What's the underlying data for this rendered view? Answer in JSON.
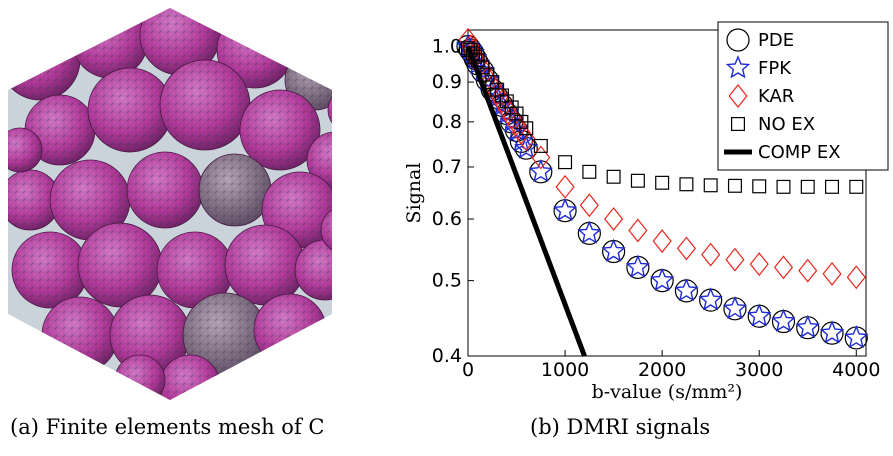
{
  "captions": {
    "a": "(a) Finite elements mesh of C",
    "b": "(b) DMRI signals"
  },
  "colors": {
    "mesh_fill": "#b83aa0",
    "mesh_dark": "#5a1a55",
    "mesh_edge": "#3a3a3a",
    "gap": "#c9d3d9",
    "pde": "#000000",
    "fpk": "#1f2bd6",
    "kar": "#e8261c",
    "noex": "#000000",
    "compex": "#000000"
  },
  "chart_data": {
    "type": "line",
    "xlabel": "b-value (s/mm²)",
    "ylabel": "Signal",
    "xlim": [
      0,
      4100
    ],
    "ylim": [
      0.4,
      1.05
    ],
    "yscale": "log",
    "xticks": [
      "0",
      "1000",
      "2000",
      "3000",
      "4000"
    ],
    "yticks": [
      "0.4",
      "0.5",
      "0.6",
      "0.7",
      "0.8",
      "0.9",
      "1.0"
    ],
    "legend_position": "top-right",
    "x": [
      0,
      25,
      50,
      75,
      100,
      150,
      200,
      250,
      300,
      350,
      400,
      450,
      500,
      550,
      600,
      750,
      1000,
      1250,
      1500,
      1750,
      2000,
      2250,
      2500,
      2750,
      3000,
      3250,
      3500,
      3750,
      4000
    ],
    "series": [
      {
        "name": "PDE",
        "marker": "circle",
        "values": [
          1.0,
          0.99,
          0.98,
          0.965,
          0.95,
          0.93,
          0.905,
          0.88,
          0.86,
          0.84,
          0.82,
          0.8,
          0.78,
          0.755,
          0.74,
          0.69,
          0.615,
          0.575,
          0.545,
          0.52,
          0.5,
          0.485,
          0.472,
          0.46,
          0.45,
          0.443,
          0.435,
          0.428,
          0.422
        ]
      },
      {
        "name": "FPK",
        "marker": "star",
        "values": [
          1.0,
          0.99,
          0.98,
          0.965,
          0.95,
          0.93,
          0.905,
          0.88,
          0.86,
          0.84,
          0.82,
          0.8,
          0.78,
          0.755,
          0.74,
          0.69,
          0.615,
          0.575,
          0.545,
          0.52,
          0.5,
          0.485,
          0.472,
          0.46,
          0.45,
          0.443,
          0.435,
          0.428,
          0.422
        ]
      },
      {
        "name": "KAR",
        "marker": "diamond",
        "values": [
          1.02,
          1.0,
          0.985,
          0.97,
          0.955,
          0.935,
          0.91,
          0.89,
          0.87,
          0.85,
          0.83,
          0.81,
          0.795,
          0.775,
          0.76,
          0.72,
          0.66,
          0.625,
          0.6,
          0.58,
          0.562,
          0.55,
          0.54,
          0.532,
          0.525,
          0.52,
          0.515,
          0.51,
          0.505
        ]
      },
      {
        "name": "NO EX",
        "marker": "square",
        "values": [
          0.995,
          0.99,
          0.98,
          0.97,
          0.96,
          0.94,
          0.92,
          0.9,
          0.88,
          0.865,
          0.85,
          0.835,
          0.82,
          0.8,
          0.785,
          0.745,
          0.71,
          0.69,
          0.68,
          0.672,
          0.668,
          0.665,
          0.663,
          0.662,
          0.661,
          0.66,
          0.66,
          0.66,
          0.66
        ]
      },
      {
        "name": "COMP EX",
        "marker": "line",
        "x": [
          0,
          1200
        ],
        "values": [
          1.0,
          0.4
        ]
      }
    ]
  }
}
